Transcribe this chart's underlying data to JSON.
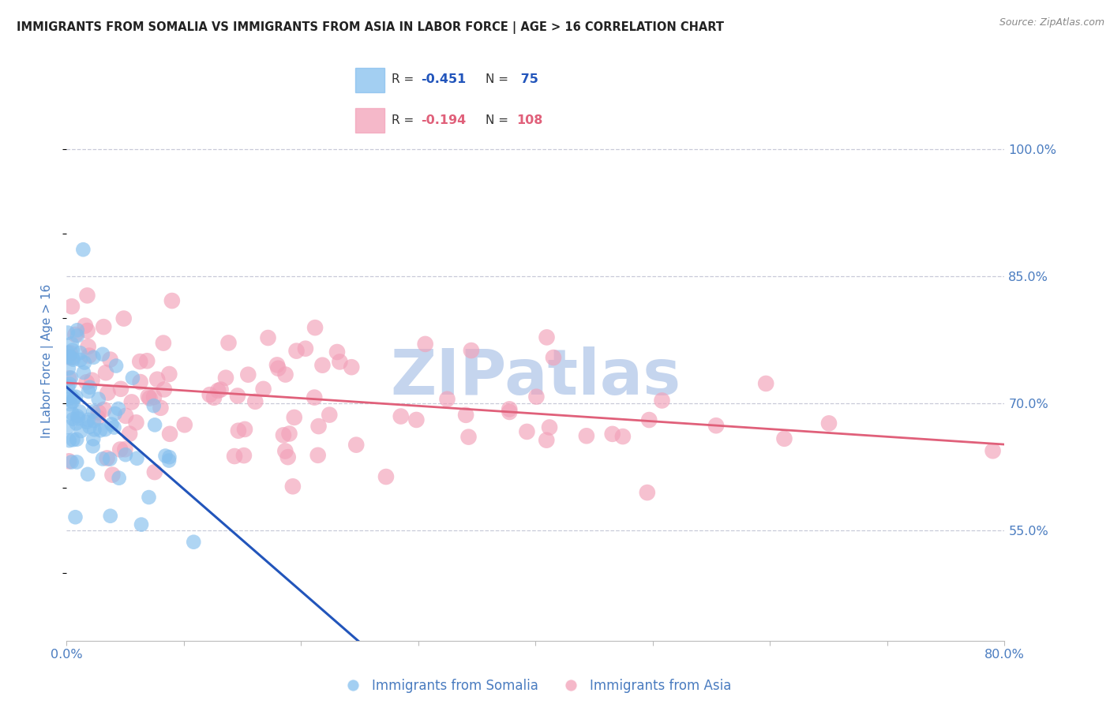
{
  "title": "IMMIGRANTS FROM SOMALIA VS IMMIGRANTS FROM ASIA IN LABOR FORCE | AGE > 16 CORRELATION CHART",
  "source": "Source: ZipAtlas.com",
  "ylabel": "In Labor Force | Age > 16",
  "somalia_R": -0.451,
  "somalia_N": 75,
  "asia_R": -0.194,
  "asia_N": 108,
  "somalia_color": "#85BFEE",
  "asia_color": "#F2A0B8",
  "somalia_line_color": "#2255BB",
  "asia_line_color": "#E0607A",
  "background_color": "#FFFFFF",
  "grid_color": "#C8CAD8",
  "tick_color": "#4A7CC0",
  "title_color": "#222222",
  "source_color": "#888888",
  "watermark": "ZIPatlas",
  "watermark_color": "#C5D5EE",
  "xlim": [
    0.0,
    80.0
  ],
  "ylim": [
    42.0,
    108.0
  ],
  "yticks": [
    55.0,
    70.0,
    85.0,
    100.0
  ],
  "xticks_show": [
    0.0,
    80.0
  ],
  "legend_somalia_label": "R = -0.451   N =  75",
  "legend_asia_label": "R = -0.194   N = 108",
  "bottom_legend_somalia": "Immigrants from Somalia",
  "bottom_legend_asia": "Immigrants from Asia"
}
